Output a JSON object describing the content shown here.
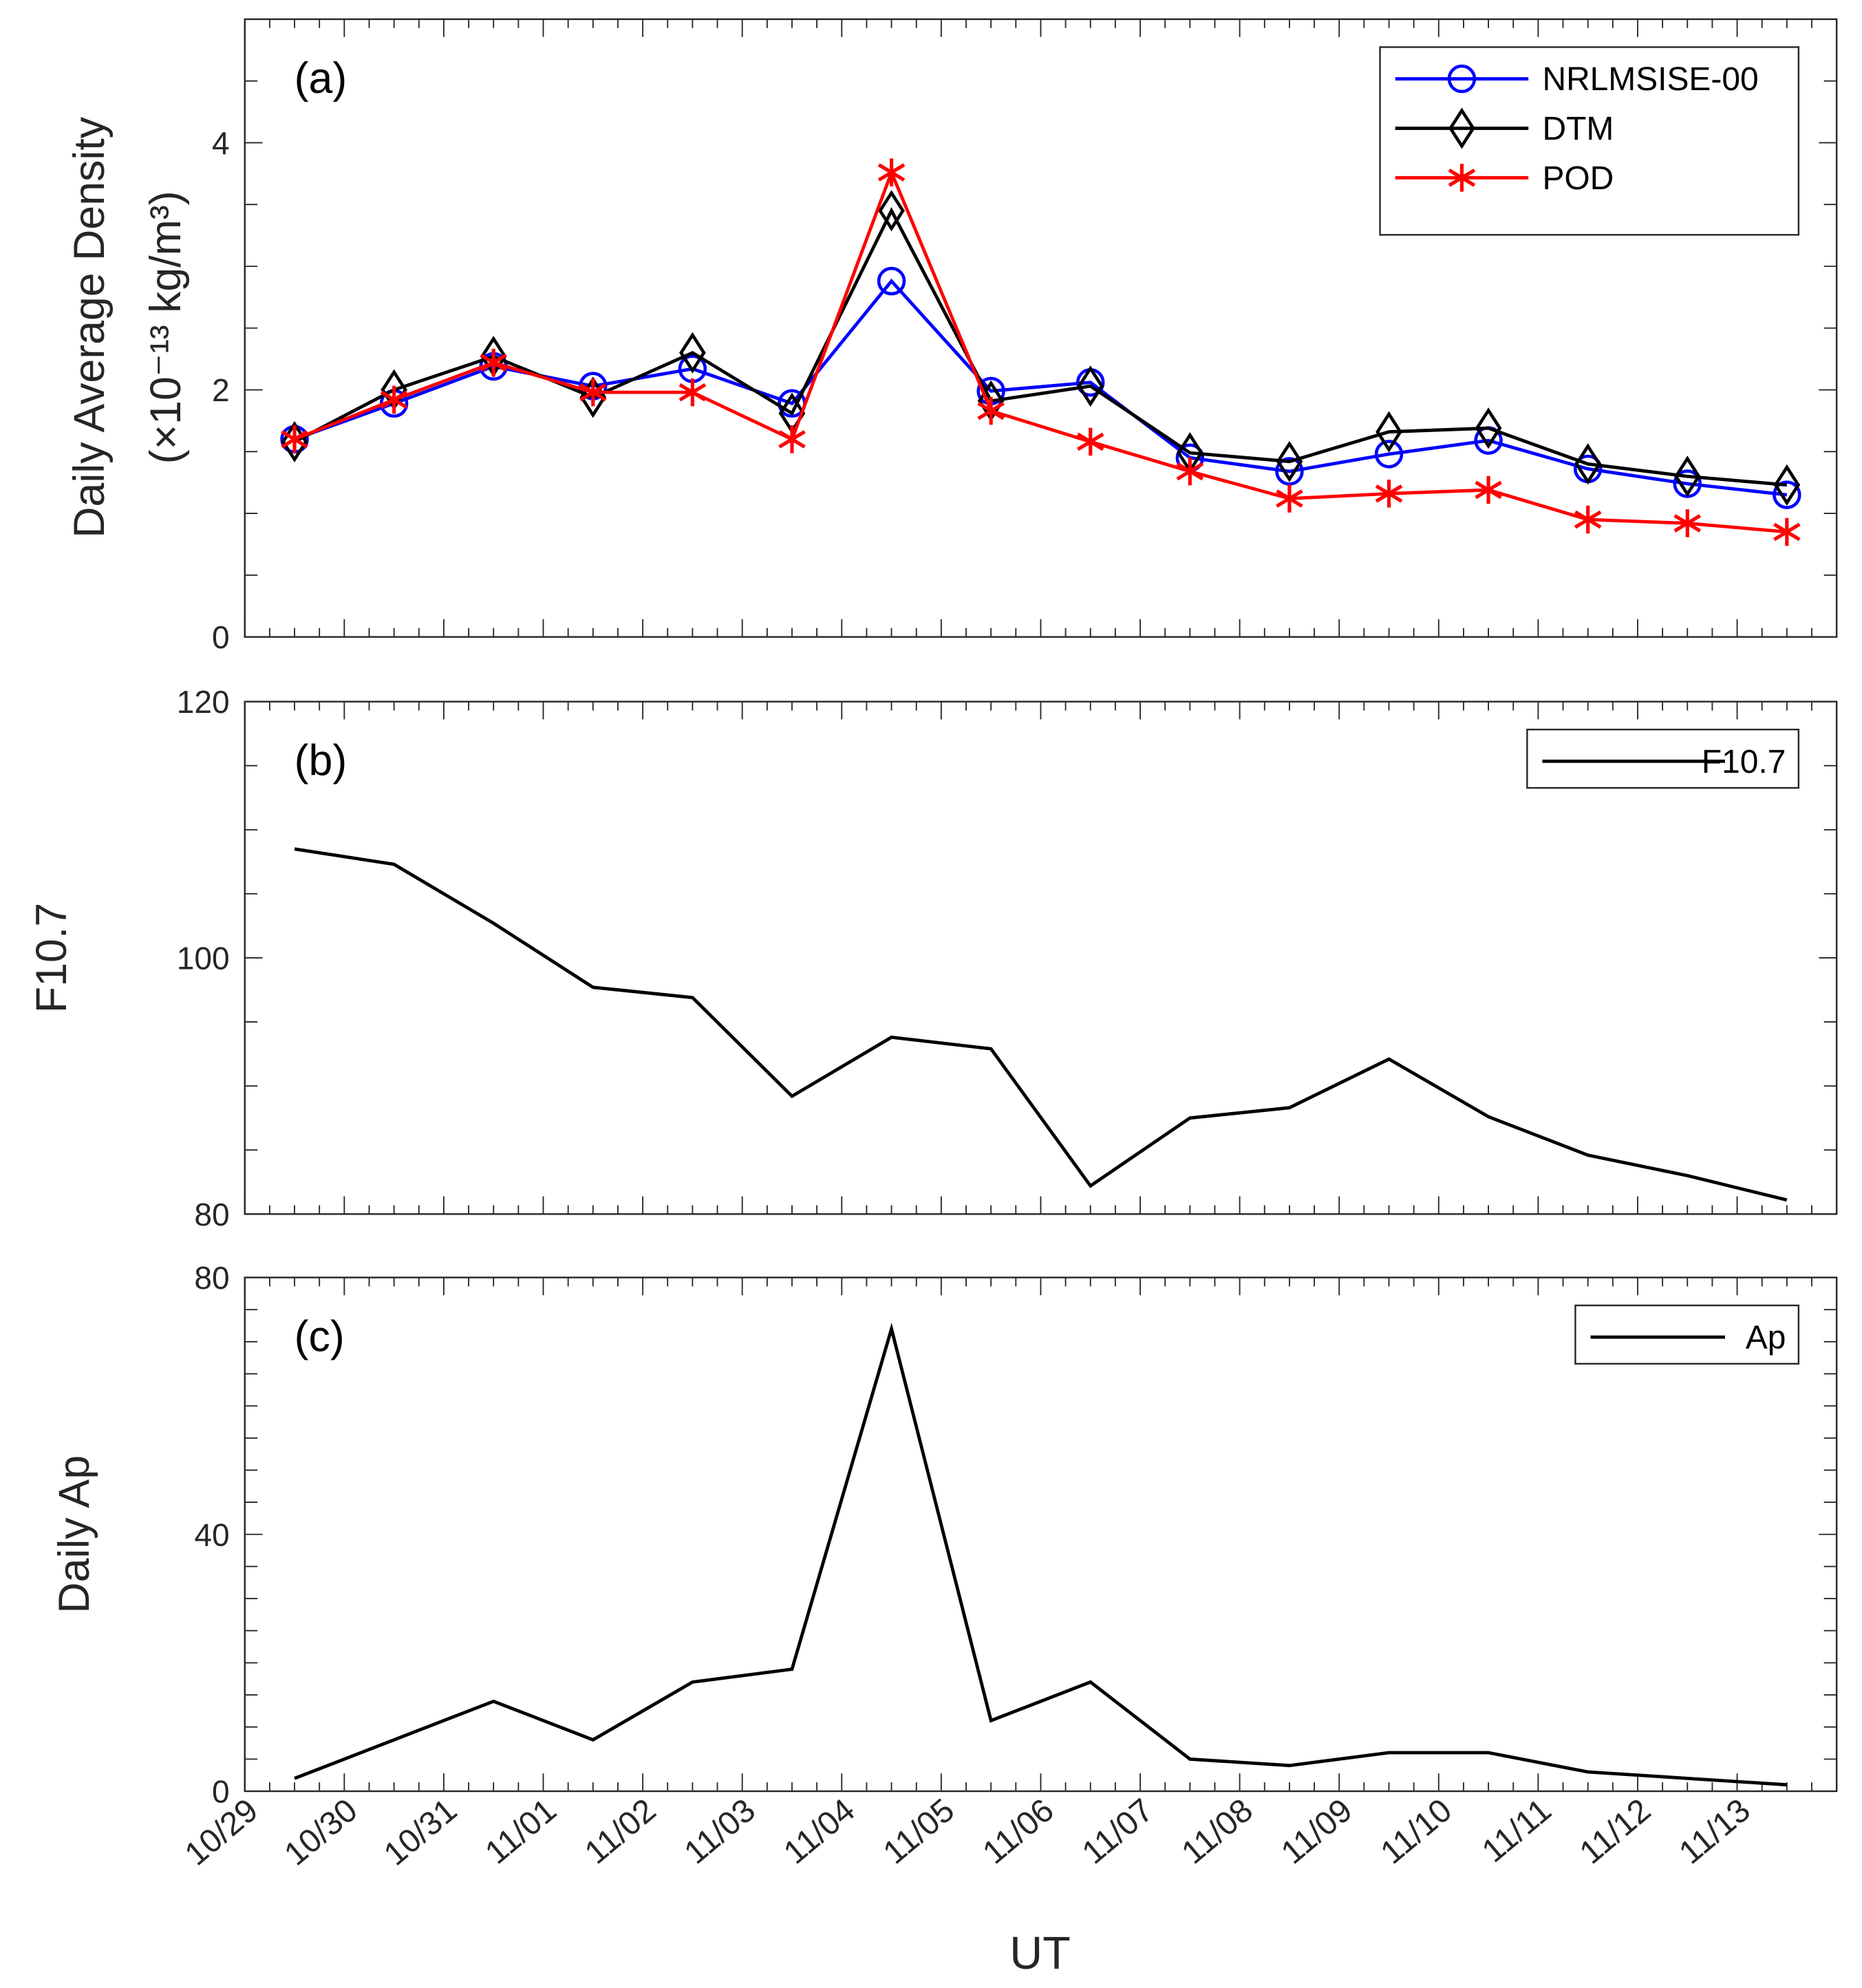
{
  "chart_data": [
    {
      "type": "line",
      "panel_label": "(a)",
      "ylabel": "Daily Average Density",
      "ylabel_units": "(×10⁻¹³ kg/m³)",
      "ylim": [
        0,
        5
      ],
      "yticks": [
        0,
        2,
        4
      ],
      "legend_position": "top-right",
      "series": [
        {
          "name": "NRLMSISE-00",
          "color": "#0000ff",
          "marker": "circle",
          "values": [
            1.6,
            1.89,
            2.19,
            2.03,
            2.17,
            1.89,
            2.88,
            1.99,
            2.06,
            1.45,
            1.34,
            1.48,
            1.59,
            1.36,
            1.24,
            1.15
          ]
        },
        {
          "name": "DTM",
          "color": "#000000",
          "marker": "diamond",
          "values": [
            1.58,
            2.0,
            2.27,
            1.94,
            2.3,
            1.81,
            3.45,
            1.91,
            2.03,
            1.49,
            1.42,
            1.66,
            1.69,
            1.4,
            1.3,
            1.23
          ]
        },
        {
          "name": "POD",
          "color": "#ff0000",
          "marker": "asterisk",
          "values": [
            1.6,
            1.92,
            2.22,
            1.98,
            1.98,
            1.6,
            3.76,
            1.83,
            1.58,
            1.34,
            1.12,
            1.16,
            1.19,
            0.95,
            0.92,
            0.85
          ]
        }
      ]
    },
    {
      "type": "line",
      "panel_label": "(b)",
      "ylabel": "F10.7",
      "ylim": [
        80,
        120
      ],
      "yticks": [
        80,
        100,
        120
      ],
      "legend_position": "top-right",
      "series": [
        {
          "name": "F10.7",
          "color": "#000000",
          "values": [
            108.5,
            107.3,
            102.7,
            97.7,
            96.9,
            89.2,
            93.8,
            92.9,
            82.2,
            87.5,
            88.3,
            92.1,
            87.6,
            84.6,
            83.0,
            81.1
          ]
        }
      ]
    },
    {
      "type": "line",
      "panel_label": "(c)",
      "ylabel": "Daily Ap",
      "ylim": [
        0,
        80
      ],
      "yticks": [
        0,
        40,
        80
      ],
      "legend_position": "top-right",
      "series": [
        {
          "name": "Ap",
          "color": "#000000",
          "values": [
            2,
            8,
            14,
            8,
            17,
            19,
            72,
            11,
            17,
            5,
            4,
            6,
            6,
            3,
            2,
            1
          ]
        }
      ]
    }
  ],
  "x_axis": {
    "label": "UT",
    "tick_labels": [
      "10/29",
      "10/30",
      "10/31",
      "11/01",
      "11/02",
      "11/03",
      "11/04",
      "11/05",
      "11/06",
      "11/07",
      "11/08",
      "11/09",
      "11/10",
      "11/11",
      "11/12",
      "11/13"
    ],
    "range_days": [
      0,
      16
    ],
    "data_offset_days": 0.5
  }
}
